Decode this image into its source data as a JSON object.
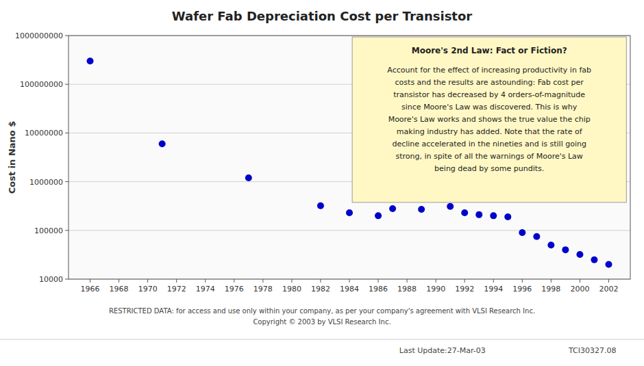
{
  "chart_data": {
    "type": "scatter",
    "title": "Wafer Fab Depreciation Cost per Transistor",
    "y_label": "Cost in Nano $",
    "x": [
      1966,
      1971,
      1977,
      1982,
      1984,
      1986,
      1987,
      1989,
      1991,
      1992,
      1993,
      1994,
      1995,
      1996,
      1997,
      1998,
      1999,
      2000,
      2001,
      2002
    ],
    "values": [
      300000000,
      6000000,
      1200000,
      320000,
      230000,
      200000,
      280000,
      270000,
      310000,
      230000,
      210000,
      200000,
      190000,
      90000,
      75000,
      50000,
      40000,
      32000,
      25000,
      20000
    ],
    "color": "#0000CC",
    "log": "y",
    "xlim": [
      1964.5,
      2003.5
    ],
    "xticks": [
      1966,
      1968,
      1970,
      1972,
      1974,
      1976,
      1978,
      1980,
      1982,
      1984,
      1986,
      1988,
      1990,
      1992,
      1994,
      1996,
      1998,
      2000,
      2002
    ],
    "ylim": [
      10000,
      1000000000
    ],
    "yticks": [
      10000,
      100000,
      1000000,
      10000000,
      100000000,
      1000000000
    ],
    "grid": "y",
    "annotation_title": "Moore's 2nd Law: Fact or Fiction?",
    "annotation": "Account for the effect of increasing productivity in fab\ncosts and the results are astounding: Fab cost per\ntransistor has decreased by 4 orders-of-magnitude\nsince Moore's Law was discovered.  This is why\nMoore's Law works and shows the true value the chip\nmaking industry has added.  Note that the rate of\ndecline accelerated in the nineties and is still going\nstrong, in spite of all the warnings of Moore's Law\nbeing dead by some pundits.",
    "footer": [
      "RESTRICTED DATA: for access and use only within your company, as per your company's agreement with VLSI Research Inc.",
      "Copyright © 2003 by VLSI Research Inc.",
      "Last Update:27-Mar-03",
      "TCI30327.08"
    ]
  }
}
